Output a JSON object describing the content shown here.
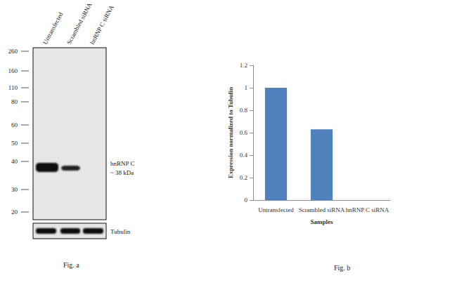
{
  "chart_data": {
    "type": "bar",
    "caption": "Fig. b",
    "categories": [
      "Untransfected",
      "Scrambled siRNA",
      "hnRNP C siRNA"
    ],
    "values": [
      1,
      0.63,
      0
    ],
    "color": "#4f81bd",
    "x_label": "Samples",
    "y_label": "Expression normalized to Tubulin",
    "ylim": [
      0,
      1.2
    ],
    "yticks": [
      0,
      0.2,
      0.4,
      0.6,
      0.8,
      1,
      1.2
    ],
    "grid": false
  },
  "blot": {
    "caption": "Fig. a",
    "lanes": [
      "Untransfected",
      "Scrambled siRNA",
      "hnRNP C siRNA"
    ],
    "markers": [
      260,
      160,
      110,
      80,
      60,
      50,
      40,
      30,
      20
    ],
    "target": "hnRNP C",
    "target_size": "~ 38 kDa",
    "loading_control": "Tubulin"
  }
}
